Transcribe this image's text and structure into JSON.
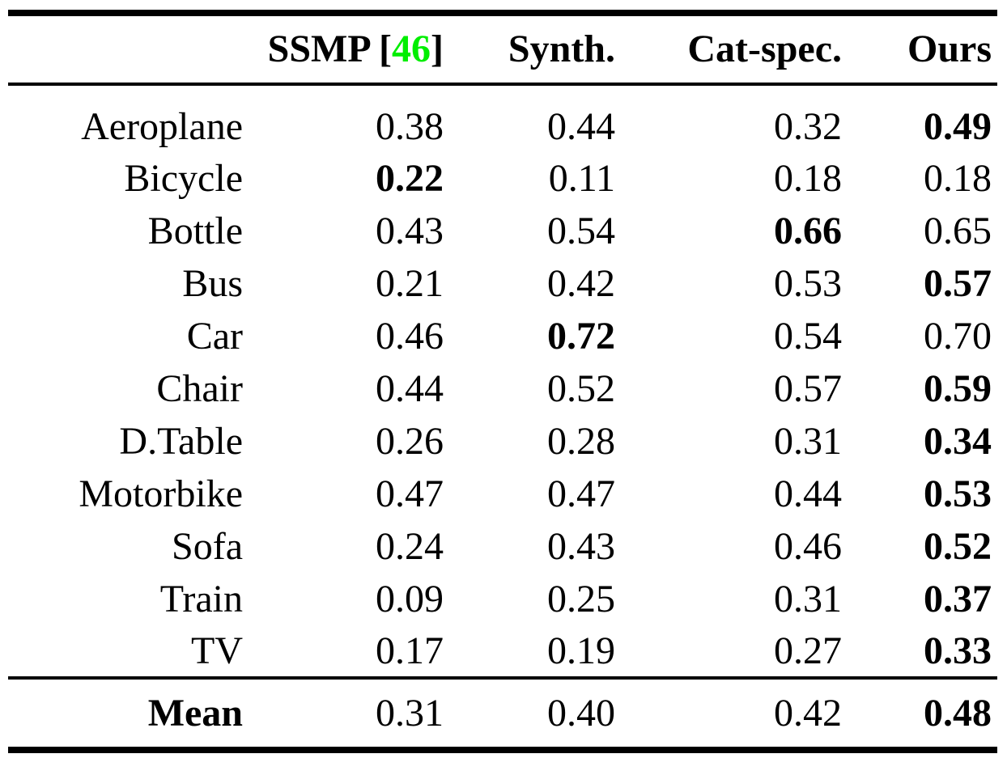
{
  "table": {
    "header": {
      "corner": "",
      "ssmp_prefix": "SSMP [",
      "ssmp_cite": "46",
      "ssmp_suffix": "]",
      "synth": "Synth.",
      "catspec": "Cat-spec.",
      "ours": "Ours"
    },
    "columns": [
      "SSMP [46]",
      "Synth.",
      "Cat-spec.",
      "Ours"
    ],
    "rows": [
      {
        "label": "Aeroplane",
        "values": [
          "0.38",
          "0.44",
          "0.32",
          "0.49"
        ],
        "bold_col": 3
      },
      {
        "label": "Bicycle",
        "values": [
          "0.22",
          "0.11",
          "0.18",
          "0.18"
        ],
        "bold_col": 0
      },
      {
        "label": "Bottle",
        "values": [
          "0.43",
          "0.54",
          "0.66",
          "0.65"
        ],
        "bold_col": 2
      },
      {
        "label": "Bus",
        "values": [
          "0.21",
          "0.42",
          "0.53",
          "0.57"
        ],
        "bold_col": 3
      },
      {
        "label": "Car",
        "values": [
          "0.46",
          "0.72",
          "0.54",
          "0.70"
        ],
        "bold_col": 1
      },
      {
        "label": "Chair",
        "values": [
          "0.44",
          "0.52",
          "0.57",
          "0.59"
        ],
        "bold_col": 3
      },
      {
        "label": "D.Table",
        "values": [
          "0.26",
          "0.28",
          "0.31",
          "0.34"
        ],
        "bold_col": 3
      },
      {
        "label": "Motorbike",
        "values": [
          "0.47",
          "0.47",
          "0.44",
          "0.53"
        ],
        "bold_col": 3
      },
      {
        "label": "Sofa",
        "values": [
          "0.24",
          "0.43",
          "0.46",
          "0.52"
        ],
        "bold_col": 3
      },
      {
        "label": "Train",
        "values": [
          "0.09",
          "0.25",
          "0.31",
          "0.37"
        ],
        "bold_col": 3
      },
      {
        "label": "TV",
        "values": [
          "0.17",
          "0.19",
          "0.27",
          "0.33"
        ],
        "bold_col": 3
      }
    ],
    "mean": {
      "label": "Mean",
      "values": [
        "0.31",
        "0.40",
        "0.42",
        "0.48"
      ],
      "bold_col": 3
    }
  },
  "chart_data": {
    "type": "table",
    "categories": [
      "Aeroplane",
      "Bicycle",
      "Bottle",
      "Bus",
      "Car",
      "Chair",
      "D.Table",
      "Motorbike",
      "Sofa",
      "Train",
      "TV",
      "Mean"
    ],
    "series": [
      {
        "name": "SSMP [46]",
        "values": [
          0.38,
          0.22,
          0.43,
          0.21,
          0.46,
          0.44,
          0.26,
          0.47,
          0.24,
          0.09,
          0.17,
          0.31
        ]
      },
      {
        "name": "Synth.",
        "values": [
          0.44,
          0.11,
          0.54,
          0.42,
          0.72,
          0.52,
          0.28,
          0.47,
          0.43,
          0.25,
          0.19,
          0.4
        ]
      },
      {
        "name": "Cat-spec.",
        "values": [
          0.32,
          0.18,
          0.66,
          0.53,
          0.54,
          0.57,
          0.31,
          0.44,
          0.46,
          0.31,
          0.27,
          0.42
        ]
      },
      {
        "name": "Ours",
        "values": [
          0.49,
          0.18,
          0.65,
          0.57,
          0.7,
          0.59,
          0.34,
          0.53,
          0.52,
          0.37,
          0.33,
          0.48
        ]
      }
    ]
  },
  "colors": {
    "citation_green": "#00ee00",
    "text": "#000000",
    "background": "#ffffff"
  }
}
